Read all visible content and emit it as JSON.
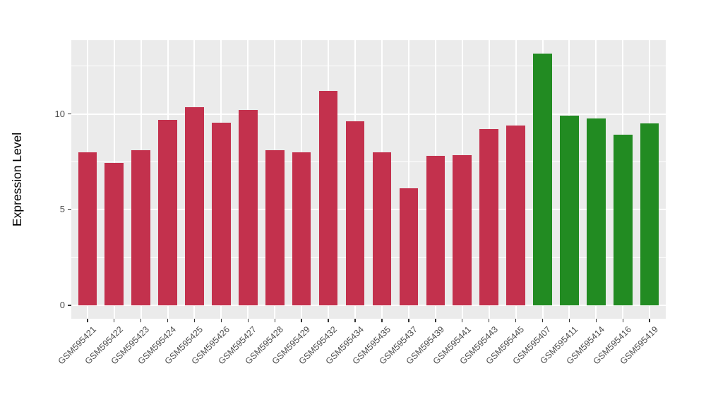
{
  "figure": {
    "background": "#FFFFFF"
  },
  "chart_data": {
    "type": "bar",
    "title": "",
    "xlabel": "",
    "ylabel": "Expression Level",
    "legend": false,
    "grid": true,
    "panel_bg": "#EBEBEB",
    "grid_color": "#FFFFFF",
    "axis_text_color": "#4D4D4D",
    "tick_color": "#333333",
    "yticks": [
      0,
      5,
      10
    ],
    "yticks_minor": [
      2.5,
      7.5,
      12.5
    ],
    "ylim": [
      -0.7,
      13.85
    ],
    "categories": [
      "GSM595421",
      "GSM595422",
      "GSM595423",
      "GSM595424",
      "GSM595425",
      "GSM595426",
      "GSM595427",
      "GSM595428",
      "GSM595429",
      "GSM595432",
      "GSM595434",
      "GSM595435",
      "GSM595437",
      "GSM595439",
      "GSM595441",
      "GSM595443",
      "GSM595445",
      "GSM595407",
      "GSM595411",
      "GSM595414",
      "GSM595416",
      "GSM595419"
    ],
    "values": [
      8.0,
      7.45,
      8.1,
      9.7,
      10.35,
      9.55,
      10.2,
      8.1,
      8.0,
      11.2,
      9.6,
      8.0,
      6.1,
      7.8,
      7.85,
      9.2,
      9.4,
      13.15,
      9.9,
      9.75,
      8.9,
      9.5
    ],
    "bar_groups": [
      "red",
      "red",
      "red",
      "red",
      "red",
      "red",
      "red",
      "red",
      "red",
      "red",
      "red",
      "red",
      "red",
      "red",
      "red",
      "red",
      "red",
      "green",
      "green",
      "green",
      "green",
      "green"
    ],
    "group_colors": {
      "red": "#C3314D",
      "green": "#228B22"
    }
  }
}
